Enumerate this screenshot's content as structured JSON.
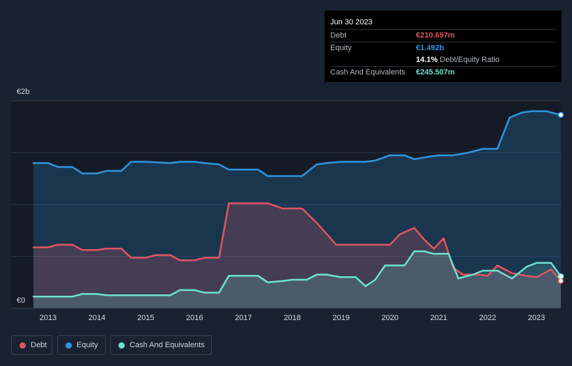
{
  "tooltip": {
    "date": "Jun 30 2023",
    "debt_label": "Debt",
    "debt_value": "€210.657m",
    "equity_label": "Equity",
    "equity_value": "€1.492b",
    "ratio_value": "14.1%",
    "ratio_label": "Debt/Equity Ratio",
    "cash_label": "Cash And Equivalents",
    "cash_value": "€245.507m"
  },
  "legend": {
    "debt": "Debt",
    "equity": "Equity",
    "cash": "Cash And Equivalents"
  },
  "colors": {
    "debt": "#e05563",
    "equity": "#2e95e3",
    "cash": "#6be3cf",
    "background": "#192231",
    "plot_background": "#151b26"
  },
  "chart_data": {
    "type": "area",
    "ylim": [
      0,
      1.6
    ],
    "y_unit": "€b",
    "xlim": [
      2012.7,
      2023.5
    ],
    "y_tick_labels": [
      {
        "value": 1.6,
        "label": "€2b"
      },
      {
        "value": 0,
        "label": "€0"
      }
    ],
    "x_ticks": [
      2013,
      2014,
      2015,
      2016,
      2017,
      2018,
      2019,
      2020,
      2021,
      2022,
      2023
    ],
    "x_tick_labels": [
      "2013",
      "2014",
      "2015",
      "2016",
      "2017",
      "2018",
      "2019",
      "2020",
      "2021",
      "2022",
      "2023"
    ],
    "series": [
      {
        "name": "Equity",
        "points": [
          [
            2012.7,
            1.12
          ],
          [
            2013.0,
            1.12
          ],
          [
            2013.2,
            1.09
          ],
          [
            2013.5,
            1.09
          ],
          [
            2013.7,
            1.04
          ],
          [
            2014.0,
            1.04
          ],
          [
            2014.2,
            1.06
          ],
          [
            2014.5,
            1.06
          ],
          [
            2014.7,
            1.13
          ],
          [
            2015.0,
            1.13
          ],
          [
            2015.5,
            1.12
          ],
          [
            2015.7,
            1.13
          ],
          [
            2016.0,
            1.13
          ],
          [
            2016.2,
            1.12
          ],
          [
            2016.5,
            1.11
          ],
          [
            2016.7,
            1.07
          ],
          [
            2017.0,
            1.07
          ],
          [
            2017.3,
            1.07
          ],
          [
            2017.5,
            1.02
          ],
          [
            2017.8,
            1.02
          ],
          [
            2018.2,
            1.02
          ],
          [
            2018.5,
            1.11
          ],
          [
            2018.7,
            1.12
          ],
          [
            2019.0,
            1.13
          ],
          [
            2019.5,
            1.13
          ],
          [
            2019.7,
            1.14
          ],
          [
            2020.0,
            1.18
          ],
          [
            2020.3,
            1.18
          ],
          [
            2020.5,
            1.15
          ],
          [
            2020.8,
            1.17
          ],
          [
            2021.0,
            1.18
          ],
          [
            2021.3,
            1.18
          ],
          [
            2021.6,
            1.2
          ],
          [
            2021.9,
            1.23
          ],
          [
            2022.2,
            1.23
          ],
          [
            2022.45,
            1.47
          ],
          [
            2022.7,
            1.51
          ],
          [
            2022.9,
            1.52
          ],
          [
            2023.2,
            1.52
          ],
          [
            2023.5,
            1.492
          ]
        ]
      },
      {
        "name": "Debt",
        "points": [
          [
            2012.7,
            0.47
          ],
          [
            2013.0,
            0.47
          ],
          [
            2013.2,
            0.49
          ],
          [
            2013.5,
            0.49
          ],
          [
            2013.7,
            0.45
          ],
          [
            2014.0,
            0.45
          ],
          [
            2014.2,
            0.46
          ],
          [
            2014.5,
            0.46
          ],
          [
            2014.7,
            0.39
          ],
          [
            2015.0,
            0.39
          ],
          [
            2015.2,
            0.41
          ],
          [
            2015.5,
            0.41
          ],
          [
            2015.7,
            0.37
          ],
          [
            2016.0,
            0.37
          ],
          [
            2016.2,
            0.39
          ],
          [
            2016.5,
            0.39
          ],
          [
            2016.7,
            0.81
          ],
          [
            2016.9,
            0.81
          ],
          [
            2017.3,
            0.81
          ],
          [
            2017.5,
            0.81
          ],
          [
            2017.8,
            0.77
          ],
          [
            2018.2,
            0.77
          ],
          [
            2018.5,
            0.66
          ],
          [
            2018.9,
            0.49
          ],
          [
            2019.3,
            0.49
          ],
          [
            2019.6,
            0.49
          ],
          [
            2020.0,
            0.49
          ],
          [
            2020.2,
            0.57
          ],
          [
            2020.5,
            0.62
          ],
          [
            2020.7,
            0.53
          ],
          [
            2020.9,
            0.46
          ],
          [
            2021.1,
            0.54
          ],
          [
            2021.3,
            0.31
          ],
          [
            2021.5,
            0.26
          ],
          [
            2021.8,
            0.26
          ],
          [
            2022.0,
            0.25
          ],
          [
            2022.2,
            0.33
          ],
          [
            2022.5,
            0.27
          ],
          [
            2022.8,
            0.25
          ],
          [
            2023.0,
            0.24
          ],
          [
            2023.3,
            0.3
          ],
          [
            2023.5,
            0.211
          ]
        ]
      },
      {
        "name": "Cash And Equivalents",
        "points": [
          [
            2012.7,
            0.09
          ],
          [
            2013.0,
            0.09
          ],
          [
            2013.5,
            0.09
          ],
          [
            2013.7,
            0.11
          ],
          [
            2014.0,
            0.11
          ],
          [
            2014.2,
            0.1
          ],
          [
            2014.5,
            0.1
          ],
          [
            2014.7,
            0.1
          ],
          [
            2015.0,
            0.1
          ],
          [
            2015.5,
            0.1
          ],
          [
            2015.7,
            0.14
          ],
          [
            2016.0,
            0.14
          ],
          [
            2016.2,
            0.12
          ],
          [
            2016.5,
            0.12
          ],
          [
            2016.7,
            0.25
          ],
          [
            2017.0,
            0.25
          ],
          [
            2017.3,
            0.25
          ],
          [
            2017.5,
            0.2
          ],
          [
            2017.8,
            0.21
          ],
          [
            2018.0,
            0.22
          ],
          [
            2018.3,
            0.22
          ],
          [
            2018.5,
            0.26
          ],
          [
            2018.7,
            0.26
          ],
          [
            2019.0,
            0.24
          ],
          [
            2019.3,
            0.24
          ],
          [
            2019.5,
            0.17
          ],
          [
            2019.7,
            0.22
          ],
          [
            2019.9,
            0.33
          ],
          [
            2020.3,
            0.33
          ],
          [
            2020.5,
            0.44
          ],
          [
            2020.7,
            0.44
          ],
          [
            2020.9,
            0.42
          ],
          [
            2021.2,
            0.42
          ],
          [
            2021.4,
            0.23
          ],
          [
            2021.7,
            0.26
          ],
          [
            2021.9,
            0.29
          ],
          [
            2022.2,
            0.29
          ],
          [
            2022.5,
            0.23
          ],
          [
            2022.8,
            0.32
          ],
          [
            2023.0,
            0.35
          ],
          [
            2023.3,
            0.35
          ],
          [
            2023.5,
            0.246
          ]
        ]
      }
    ]
  }
}
